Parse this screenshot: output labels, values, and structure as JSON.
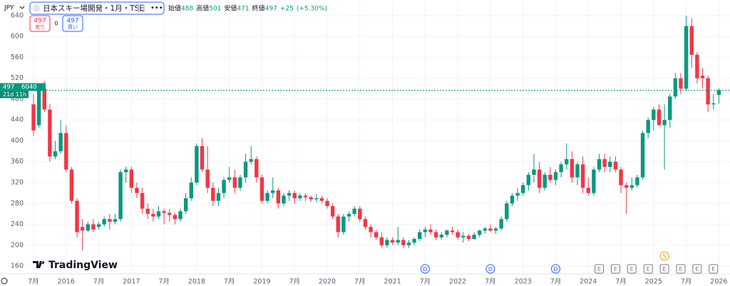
{
  "chart_data": {
    "type": "candlestick",
    "currency": "JPY",
    "symbol": "日本スキー場開発・1月・TSE",
    "more": "•••",
    "legend": {
      "open_label": "始値",
      "open": 488,
      "high_label": "高値",
      "high": 501,
      "low_label": "安値",
      "low": 471,
      "close_label": "終値",
      "close": 497,
      "change": "+25",
      "change_pct": "(+5.30%)"
    },
    "sell": {
      "price": 497,
      "label": "売り"
    },
    "spread": 0,
    "buy": {
      "price": 497,
      "label": "買い"
    },
    "last_price": 497,
    "volume_label": "6040",
    "countdown": "21d 11h",
    "brand": "TradingView",
    "up_color": "#089981",
    "down_color": "#f23645",
    "grid": true,
    "x": [
      "2015-07",
      "2015-08",
      "2015-09",
      "2015-10",
      "2015-11",
      "2015-12",
      "2016-01",
      "2016-02",
      "2016-03",
      "2016-04",
      "2016-05",
      "2016-06",
      "2016-07",
      "2016-08",
      "2016-09",
      "2016-10",
      "2016-11",
      "2016-12",
      "2017-01",
      "2017-02",
      "2017-03",
      "2017-04",
      "2017-05",
      "2017-06",
      "2017-07",
      "2017-08",
      "2017-09",
      "2017-10",
      "2017-11",
      "2017-12",
      "2018-01",
      "2018-02",
      "2018-03",
      "2018-04",
      "2018-05",
      "2018-06",
      "2018-07",
      "2018-08",
      "2018-09",
      "2018-10",
      "2018-11",
      "2018-12",
      "2019-01",
      "2019-02",
      "2019-03",
      "2019-04",
      "2019-05",
      "2019-06",
      "2019-07",
      "2019-08",
      "2019-09",
      "2019-10",
      "2019-11",
      "2019-12",
      "2020-01",
      "2020-02",
      "2020-03",
      "2020-04",
      "2020-05",
      "2020-06",
      "2020-07",
      "2020-08",
      "2020-09",
      "2020-10",
      "2020-11",
      "2020-12",
      "2021-01",
      "2021-02",
      "2021-03",
      "2021-04",
      "2021-05",
      "2021-06",
      "2021-07",
      "2021-08",
      "2021-09",
      "2021-10",
      "2021-11",
      "2021-12",
      "2022-01",
      "2022-02",
      "2022-03",
      "2022-04",
      "2022-05",
      "2022-06",
      "2022-07",
      "2022-08",
      "2022-09",
      "2022-10",
      "2022-11",
      "2022-12",
      "2023-01",
      "2023-02",
      "2023-03",
      "2023-04",
      "2023-05",
      "2023-06",
      "2023-07",
      "2023-08",
      "2023-09",
      "2023-10",
      "2023-11",
      "2023-12",
      "2024-01",
      "2024-02",
      "2024-03",
      "2024-04",
      "2024-05",
      "2024-06",
      "2024-07",
      "2024-08",
      "2024-09",
      "2024-10",
      "2024-11",
      "2024-12",
      "2025-01",
      "2025-02",
      "2025-03",
      "2025-04",
      "2025-05",
      "2025-06",
      "2025-07",
      "2025-08",
      "2025-09",
      "2025-10",
      "2025-11",
      "2025-12",
      "2026-01"
    ],
    "open": [
      470,
      430,
      500,
      460,
      370,
      380,
      415,
      345,
      285,
      235,
      228,
      240,
      235,
      240,
      250,
      245,
      250,
      340,
      345,
      310,
      300,
      270,
      260,
      255,
      265,
      262,
      258,
      250,
      265,
      290,
      320,
      390,
      345,
      310,
      285,
      300,
      325,
      330,
      310,
      330,
      360,
      365,
      330,
      285,
      300,
      305,
      280,
      295,
      300,
      290,
      295,
      292,
      288,
      290,
      285,
      275,
      255,
      225,
      255,
      260,
      270,
      250,
      235,
      225,
      215,
      200,
      210,
      205,
      210,
      200,
      205,
      212,
      225,
      230,
      225,
      215,
      220,
      228,
      225,
      215,
      218,
      212,
      220,
      228,
      232,
      228,
      232,
      250,
      280,
      295,
      300,
      315,
      335,
      345,
      310,
      335,
      325,
      340,
      355,
      365,
      330,
      355,
      310,
      300,
      345,
      365,
      350,
      360,
      345,
      315,
      310,
      315,
      330,
      415,
      440,
      460,
      430,
      440,
      485,
      520,
      500,
      620,
      565,
      525,
      520,
      470,
      488
    ],
    "high": [
      490,
      510,
      515,
      470,
      400,
      440,
      430,
      350,
      290,
      250,
      245,
      250,
      245,
      255,
      260,
      260,
      345,
      350,
      350,
      320,
      310,
      280,
      270,
      275,
      270,
      270,
      262,
      270,
      300,
      330,
      395,
      405,
      390,
      320,
      310,
      330,
      350,
      345,
      335,
      375,
      390,
      370,
      335,
      305,
      330,
      310,
      300,
      305,
      305,
      300,
      300,
      295,
      298,
      295,
      290,
      280,
      260,
      260,
      265,
      275,
      275,
      255,
      240,
      230,
      225,
      215,
      215,
      235,
      215,
      210,
      215,
      230,
      235,
      240,
      230,
      225,
      230,
      235,
      230,
      225,
      222,
      225,
      230,
      235,
      240,
      235,
      255,
      285,
      300,
      310,
      320,
      340,
      375,
      360,
      340,
      350,
      345,
      360,
      395,
      380,
      360,
      370,
      330,
      350,
      375,
      375,
      370,
      370,
      350,
      320,
      330,
      335,
      420,
      445,
      465,
      470,
      470,
      490,
      530,
      530,
      640,
      635,
      570,
      540,
      525,
      490,
      501
    ],
    "low": [
      410,
      425,
      455,
      360,
      365,
      375,
      340,
      280,
      215,
      190,
      225,
      225,
      230,
      235,
      230,
      240,
      245,
      320,
      300,
      290,
      260,
      250,
      245,
      250,
      240,
      245,
      240,
      245,
      260,
      285,
      315,
      340,
      300,
      275,
      275,
      290,
      320,
      300,
      305,
      320,
      355,
      320,
      280,
      280,
      290,
      270,
      275,
      285,
      280,
      285,
      285,
      283,
      282,
      280,
      270,
      250,
      215,
      220,
      245,
      255,
      245,
      230,
      215,
      210,
      195,
      195,
      200,
      200,
      195,
      195,
      200,
      208,
      215,
      220,
      210,
      210,
      215,
      220,
      210,
      205,
      208,
      210,
      215,
      222,
      225,
      222,
      228,
      245,
      275,
      285,
      295,
      305,
      320,
      300,
      305,
      320,
      315,
      330,
      345,
      320,
      315,
      300,
      295,
      295,
      340,
      340,
      340,
      340,
      300,
      260,
      305,
      310,
      325,
      405,
      420,
      430,
      345,
      425,
      480,
      490,
      495,
      540,
      510,
      500,
      455,
      460,
      471
    ],
    "close": [
      420,
      500,
      460,
      370,
      380,
      415,
      345,
      285,
      225,
      228,
      240,
      230,
      240,
      250,
      245,
      250,
      340,
      345,
      310,
      300,
      270,
      260,
      255,
      265,
      262,
      258,
      250,
      265,
      290,
      320,
      390,
      345,
      310,
      285,
      300,
      325,
      330,
      310,
      330,
      360,
      365,
      330,
      285,
      300,
      305,
      280,
      295,
      300,
      290,
      295,
      292,
      288,
      290,
      285,
      275,
      255,
      225,
      255,
      260,
      270,
      250,
      235,
      225,
      215,
      200,
      210,
      205,
      210,
      200,
      205,
      212,
      225,
      230,
      225,
      215,
      220,
      228,
      225,
      215,
      218,
      212,
      220,
      228,
      232,
      228,
      232,
      250,
      280,
      295,
      300,
      315,
      335,
      345,
      310,
      335,
      325,
      340,
      355,
      365,
      330,
      355,
      310,
      300,
      345,
      365,
      350,
      360,
      345,
      315,
      310,
      315,
      330,
      415,
      440,
      460,
      430,
      440,
      485,
      520,
      500,
      620,
      565,
      520,
      520,
      470,
      472,
      497
    ],
    "ylim": [
      145,
      670
    ],
    "yticks": [
      160,
      200,
      240,
      280,
      320,
      360,
      400,
      440,
      480,
      520,
      560,
      600,
      640
    ],
    "xticks": [
      {
        "value": "2015-07",
        "label": "7月"
      },
      {
        "value": "2016-01",
        "label": "2016"
      },
      {
        "value": "2016-07",
        "label": "7月"
      },
      {
        "value": "2017-01",
        "label": "2017"
      },
      {
        "value": "2017-07",
        "label": "7月"
      },
      {
        "value": "2018-01",
        "label": "2018"
      },
      {
        "value": "2018-07",
        "label": "7月"
      },
      {
        "value": "2019-01",
        "label": "2019"
      },
      {
        "value": "2019-07",
        "label": "7月"
      },
      {
        "value": "2020-01",
        "label": "2020"
      },
      {
        "value": "2020-07",
        "label": "7月"
      },
      {
        "value": "2021-01",
        "label": "2021"
      },
      {
        "value": "2021-07",
        "label": "7月"
      },
      {
        "value": "2022-01",
        "label": "2022"
      },
      {
        "value": "2022-07",
        "label": "7月"
      },
      {
        "value": "2023-01",
        "label": "2023"
      },
      {
        "value": "2023-07",
        "label": "7月"
      },
      {
        "value": "2024-01",
        "label": "2024"
      },
      {
        "value": "2024-07",
        "label": "7月"
      },
      {
        "value": "2025-01",
        "label": "2025"
      },
      {
        "value": "2025-07",
        "label": "7月"
      },
      {
        "value": "2026-01",
        "label": "2026"
      }
    ],
    "events": [
      {
        "x": "2021-07",
        "label": "D",
        "kind": "dividend"
      },
      {
        "x": "2022-07",
        "label": "D",
        "kind": "dividend"
      },
      {
        "x": "2023-07",
        "label": "D",
        "kind": "dividend"
      },
      {
        "x": "2024-03",
        "label": "E",
        "kind": "earnings"
      },
      {
        "x": "2024-06",
        "label": "E",
        "kind": "earnings"
      },
      {
        "x": "2024-09",
        "label": "E",
        "kind": "earnings"
      },
      {
        "x": "2024-12",
        "label": "E",
        "kind": "earnings"
      },
      {
        "x": "2025-03",
        "label": "E",
        "kind": "earnings"
      },
      {
        "x": "2025-03",
        "label": "S",
        "kind": "split"
      },
      {
        "x": "2025-06",
        "label": "E",
        "kind": "earnings"
      },
      {
        "x": "2025-09",
        "label": "E",
        "kind": "earnings"
      },
      {
        "x": "2025-12",
        "label": "E",
        "kind": "earnings"
      }
    ]
  }
}
